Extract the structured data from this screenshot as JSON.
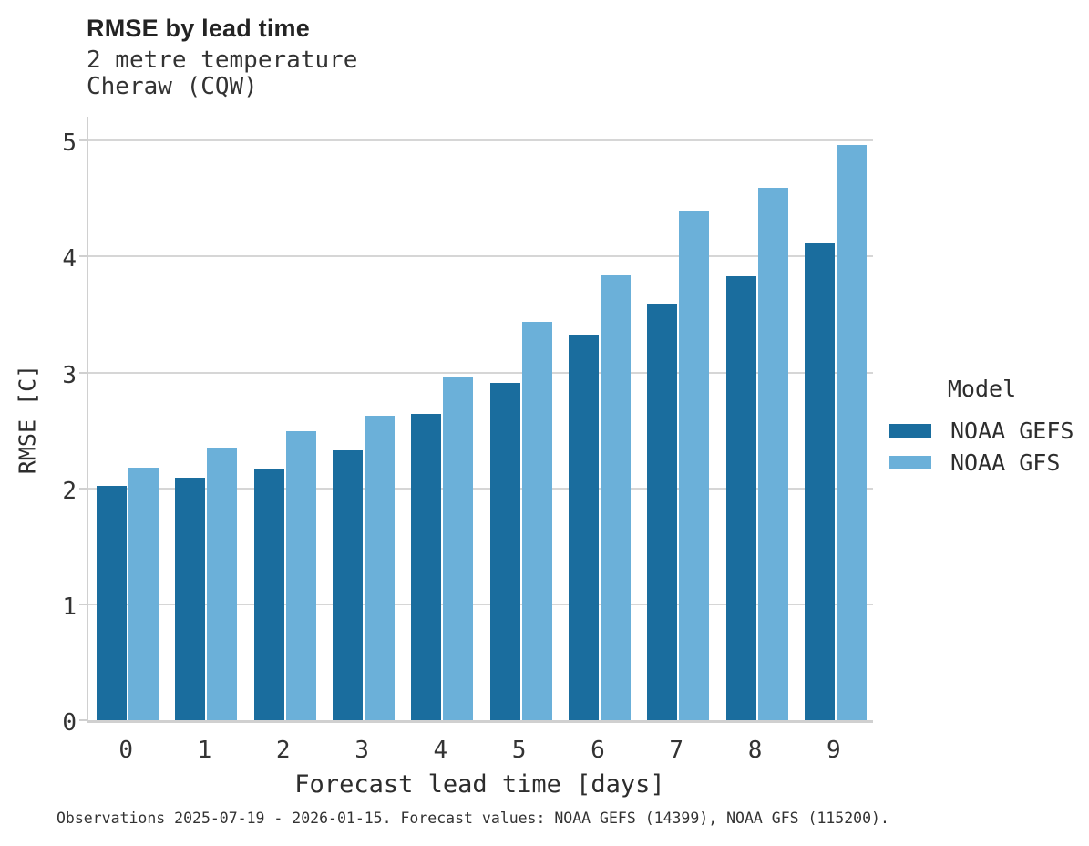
{
  "header": {
    "title": "RMSE by lead time",
    "subtitle1": "2 metre temperature",
    "subtitle2": "Cheraw (CQW)"
  },
  "chart_data": {
    "type": "bar",
    "title": "RMSE by lead time",
    "subtitle": [
      "2 metre temperature",
      "Cheraw (CQW)"
    ],
    "categories": [
      "0",
      "1",
      "2",
      "3",
      "4",
      "5",
      "6",
      "7",
      "8",
      "9"
    ],
    "series": [
      {
        "name": "NOAA GEFS",
        "color": "#1a6d9e",
        "values": [
          2.02,
          2.09,
          2.17,
          2.33,
          2.64,
          2.91,
          3.33,
          3.59,
          3.83,
          4.11
        ]
      },
      {
        "name": "NOAA GFS",
        "color": "#6bb0d9",
        "values": [
          2.18,
          2.35,
          2.49,
          2.63,
          2.96,
          3.44,
          3.84,
          4.4,
          4.59,
          4.96
        ]
      }
    ],
    "xlabel": "Forecast lead time [days]",
    "ylabel": "RMSE [C]",
    "ylim": [
      0,
      5.23
    ],
    "yticks": [
      0,
      1,
      2,
      3,
      4,
      5
    ],
    "grid": true,
    "legend_title": "Model",
    "legend_position": "right"
  },
  "legend": {
    "title": "Model",
    "items": [
      {
        "label": "NOAA GEFS",
        "color": "#1a6d9e"
      },
      {
        "label": "NOAA GFS",
        "color": "#6bb0d9"
      }
    ]
  },
  "caption": "Observations 2025-07-19 - 2026-01-15. Forecast values: NOAA GEFS (14399), NOAA GFS (115200).",
  "colors": {
    "bar_dark": "#1a6d9e",
    "bar_light": "#6bb0d9",
    "gridline": "#d6d6d6",
    "axis_line": "#d0d0d0",
    "text": "#2d2d2d"
  }
}
